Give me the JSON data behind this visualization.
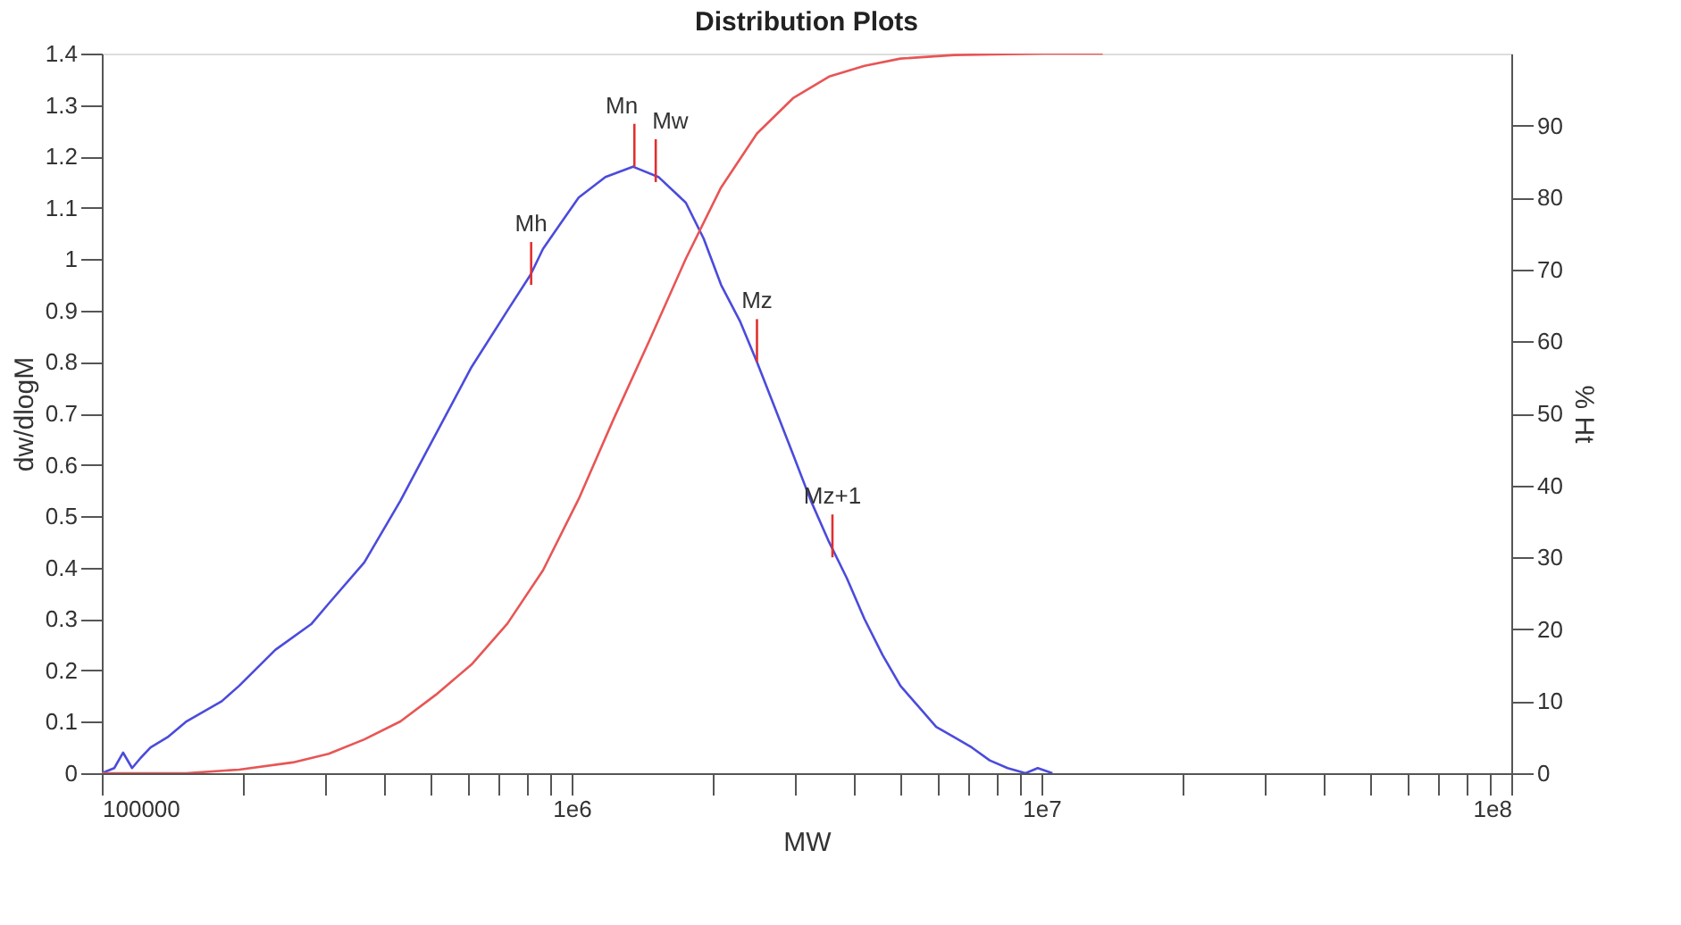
{
  "chart_data": {
    "type": "line",
    "title": "Distribution Plots",
    "xlabel": "MW",
    "ylabel": "dw/dlogM",
    "y2label": "% Ht",
    "log": "x",
    "grid": false,
    "marker": "none",
    "line_style": "solid",
    "xlim": [
      100000,
      100000000
    ],
    "xticks": [
      {
        "value": 100000,
        "label": "100000"
      },
      {
        "value": 200000,
        "label": null
      },
      {
        "value": 300000,
        "label": null
      },
      {
        "value": 400000,
        "label": null
      },
      {
        "value": 500000,
        "label": null
      },
      {
        "value": 600000,
        "label": null
      },
      {
        "value": 700000,
        "label": null
      },
      {
        "value": 800000,
        "label": null
      },
      {
        "value": 900000,
        "label": null
      },
      {
        "value": 1000000,
        "label": "1e6"
      },
      {
        "value": 2000000,
        "label": null
      },
      {
        "value": 3000000,
        "label": null
      },
      {
        "value": 4000000,
        "label": null
      },
      {
        "value": 5000000,
        "label": null
      },
      {
        "value": 6000000,
        "label": null
      },
      {
        "value": 7000000,
        "label": null
      },
      {
        "value": 8000000,
        "label": null
      },
      {
        "value": 9000000,
        "label": null
      },
      {
        "value": 10000000,
        "label": "1e7"
      },
      {
        "value": 20000000,
        "label": null
      },
      {
        "value": 30000000,
        "label": null
      },
      {
        "value": 40000000,
        "label": null
      },
      {
        "value": 50000000,
        "label": null
      },
      {
        "value": 60000000,
        "label": null
      },
      {
        "value": 70000000,
        "label": null
      },
      {
        "value": 80000000,
        "label": null
      },
      {
        "value": 90000000,
        "label": null
      },
      {
        "value": 100000000,
        "label": "1e8"
      }
    ],
    "ylim": [
      0,
      1.4
    ],
    "yticks": [
      0,
      0.1,
      0.2,
      0.3,
      0.4,
      0.5,
      0.6,
      0.7,
      0.8,
      0.9,
      1,
      1.1,
      1.2,
      1.3,
      1.4
    ],
    "y2lim": [
      0,
      100
    ],
    "y2ticks": [
      0,
      10,
      20,
      30,
      40,
      50,
      60,
      70,
      80,
      90
    ],
    "series": [
      {
        "color": "#4b4bdc",
        "x": [
          100000,
          106300,
          111000,
          116000,
          121000,
          127000,
          138000,
          151000,
          180000,
          196000,
          234000,
          279000,
          304000,
          362000,
          432000,
          514000,
          612000,
          730000,
          818000,
          869000,
          948000,
          1035000,
          1180000,
          1350000,
          1530000,
          1750000,
          1910000,
          2080000,
          2280000,
          2480000,
          2710000,
          2960000,
          3230000,
          3530000,
          3850000,
          4200000,
          4590000,
          5010000,
          5470000,
          5970000,
          6520000,
          7110000,
          7760000,
          8470000,
          9250000,
          9820000,
          10550000
        ],
        "values": [
          0,
          0.01,
          0.04,
          0.01,
          0.03,
          0.05,
          0.07,
          0.1,
          0.14,
          0.17,
          0.24,
          0.29,
          0.33,
          0.41,
          0.53,
          0.66,
          0.79,
          0.9,
          0.97,
          1.02,
          1.07,
          1.12,
          1.16,
          1.18,
          1.16,
          1.11,
          1.04,
          0.95,
          0.88,
          0.8,
          0.71,
          0.62,
          0.53,
          0.45,
          0.38,
          0.3,
          0.23,
          0.17,
          0.13,
          0.09,
          0.07,
          0.05,
          0.025,
          0.01,
          0,
          0.01,
          0
        ]
      },
      {
        "color": "#e85555",
        "axis": "y2",
        "x": [
          100000,
          151000,
          196000,
          255000,
          304000,
          362000,
          432000,
          514000,
          612000,
          730000,
          869000,
          1035000,
          1230000,
          1470000,
          1750000,
          2080000,
          2480000,
          2960000,
          3530000,
          4200000,
          5010000,
          6520000,
          10100000,
          13500000
        ],
        "values": [
          0,
          0,
          0.5,
          1.5,
          2.7,
          4.7,
          7.2,
          10.9,
          15.1,
          20.8,
          28.2,
          38.1,
          49.3,
          60.4,
          71.5,
          81.4,
          88.9,
          93.8,
          96.8,
          98.3,
          99.3,
          99.8,
          100,
          100
        ]
      }
    ],
    "annotations": [
      {
        "text": "Mn",
        "x": 1360000,
        "y": 1.18
      },
      {
        "text": "Mw",
        "x": 1510000,
        "y": 1.15
      },
      {
        "text": "Mh",
        "x": 820000,
        "y": 0.95
      },
      {
        "text": "Mz",
        "x": 2480000,
        "y": 0.8
      },
      {
        "text": "Mz+1",
        "x": 3590000,
        "y": 0.42
      }
    ]
  }
}
